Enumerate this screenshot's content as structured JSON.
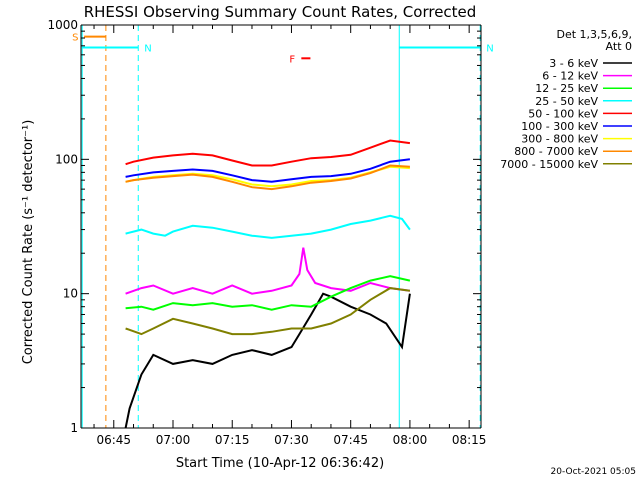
{
  "chart_data": {
    "type": "line",
    "title": "RHESSI Observing Summary Count Rates, Corrected",
    "xlabel": "Start Time (10-Apr-12 06:36:42)",
    "ylabel": "Corrected Count Rate (s⁻¹ detector⁻¹)",
    "yscale": "log",
    "ylim": [
      1,
      1000
    ],
    "xlim_minutes": [
      396.7,
      498.0
    ],
    "x_ticks": [
      {
        "label": "06:45",
        "minute": 405
      },
      {
        "label": "07:00",
        "minute": 420
      },
      {
        "label": "07:15",
        "minute": 435
      },
      {
        "label": "07:30",
        "minute": 450
      },
      {
        "label": "07:45",
        "minute": 465
      },
      {
        "label": "08:00",
        "minute": 480
      },
      {
        "label": "08:15",
        "minute": 495
      }
    ],
    "y_ticks": [
      {
        "label": "1",
        "value": 1
      },
      {
        "label": "10",
        "value": 10
      },
      {
        "label": "100",
        "value": 100
      },
      {
        "label": "1000",
        "value": 1000
      }
    ],
    "legend_title": [
      "Det 1,3,5,6,9,",
      "Att 0"
    ],
    "legend_position": "right",
    "grid": false,
    "footer_date": "20-Oct-2021 05:05",
    "series": [
      {
        "name": "3 - 6 keV",
        "color": "#000000",
        "x": [
          408,
          409,
          412,
          415,
          420,
          425,
          430,
          435,
          440,
          445,
          450,
          452,
          455,
          458,
          460,
          465,
          470,
          474,
          478,
          480
        ],
        "y": [
          1.0,
          1.4,
          2.5,
          3.5,
          3.0,
          3.2,
          3.0,
          3.5,
          3.8,
          3.5,
          4.0,
          5.0,
          7.0,
          10.0,
          9.5,
          8.0,
          7.0,
          6.0,
          4.0,
          10.0
        ]
      },
      {
        "name": "6 - 12 keV",
        "color": "#ff00ff",
        "x": [
          408,
          412,
          415,
          420,
          425,
          430,
          435,
          440,
          445,
          450,
          452,
          453,
          454,
          456,
          460,
          465,
          470,
          475,
          480
        ],
        "y": [
          10.0,
          11.0,
          11.5,
          10.0,
          11.0,
          10.0,
          11.5,
          10.0,
          10.5,
          11.5,
          14.0,
          22.0,
          15.0,
          12.0,
          11.0,
          10.5,
          12.0,
          11.0,
          10.5
        ]
      },
      {
        "name": "12 - 25 keV",
        "color": "#00ff00",
        "x": [
          408,
          412,
          415,
          420,
          425,
          430,
          435,
          440,
          445,
          450,
          455,
          460,
          465,
          470,
          475,
          480
        ],
        "y": [
          7.8,
          8.0,
          7.6,
          8.5,
          8.2,
          8.5,
          8.0,
          8.2,
          7.6,
          8.2,
          8.0,
          9.5,
          11.0,
          12.5,
          13.5,
          12.5
        ]
      },
      {
        "name": "25 - 50 keV",
        "color": "#00ffff",
        "x": [
          408,
          412,
          415,
          418,
          420,
          425,
          430,
          435,
          440,
          445,
          450,
          455,
          460,
          465,
          470,
          475,
          478,
          480
        ],
        "y": [
          28,
          30,
          28,
          27,
          29,
          32,
          31,
          29,
          27,
          26,
          27,
          28,
          30,
          33,
          35,
          38,
          36,
          30
        ]
      },
      {
        "name": "50 - 100 keV",
        "color": "#ff0000",
        "x": [
          408,
          410,
          415,
          420,
          425,
          430,
          435,
          440,
          445,
          450,
          455,
          460,
          465,
          470,
          475,
          480
        ],
        "y": [
          92,
          96,
          103,
          107,
          110,
          107,
          98,
          90,
          90,
          96,
          102,
          104,
          108,
          122,
          138,
          132
        ]
      },
      {
        "name": "100 - 300 keV",
        "color": "#0000ff",
        "x": [
          408,
          410,
          415,
          420,
          425,
          430,
          435,
          440,
          445,
          450,
          455,
          460,
          465,
          470,
          475,
          480
        ],
        "y": [
          74,
          76,
          80,
          82,
          84,
          82,
          76,
          70,
          68,
          71,
          74,
          75,
          78,
          85,
          96,
          100
        ]
      },
      {
        "name": "300 - 800 keV",
        "color": "#ffff00",
        "x": [
          408,
          410,
          415,
          420,
          425,
          430,
          435,
          440,
          445,
          450,
          455,
          460,
          465,
          470,
          475,
          480
        ],
        "y": [
          68,
          70,
          74,
          76,
          78,
          76,
          71,
          65,
          63,
          65,
          69,
          70,
          73,
          80,
          88,
          86
        ]
      },
      {
        "name": "800 - 7000 keV",
        "color": "#ff8800",
        "x": [
          408,
          410,
          415,
          420,
          425,
          430,
          435,
          440,
          445,
          450,
          455,
          460,
          465,
          470,
          475,
          480
        ],
        "y": [
          68,
          70,
          73,
          75,
          77,
          74,
          68,
          62,
          60,
          63,
          67,
          69,
          72,
          79,
          90,
          88
        ]
      },
      {
        "name": "7000 - 15000 keV",
        "color": "#808000",
        "x": [
          408,
          412,
          415,
          420,
          425,
          430,
          435,
          440,
          445,
          450,
          455,
          460,
          465,
          470,
          475,
          480
        ],
        "y": [
          5.5,
          5.0,
          5.5,
          6.5,
          6.0,
          5.5,
          5.0,
          5.0,
          5.2,
          5.5,
          5.5,
          6.0,
          7.0,
          9.0,
          11.0,
          10.5
        ]
      }
    ],
    "markers": [
      {
        "label": "S",
        "color": "#ff8800",
        "x_start": 397.5,
        "x_end": 403.0,
        "y": 820
      },
      {
        "label": "N",
        "color": "#00ffff",
        "x_start": 397.0,
        "x_end": 411.2,
        "y": 680
      },
      {
        "label": "N",
        "color": "#00ffff",
        "x_start": 477.3,
        "x_end": 497.8,
        "y": 680
      },
      {
        "label": "F",
        "color": "#ff0000",
        "x_start": 452.5,
        "x_end": 454.8,
        "y": 565
      }
    ],
    "vertical_lines": [
      {
        "color": "#ff8800",
        "style": "dashed",
        "x": 403.0
      },
      {
        "color": "#00ffff",
        "style": "dashed",
        "x": 411.2
      },
      {
        "color": "#00ffff",
        "style": "solid",
        "x": 397.0
      },
      {
        "color": "#00ffff",
        "style": "solid",
        "x": 477.3
      },
      {
        "color": "#00ffff",
        "style": "dashed",
        "x": 497.8
      }
    ]
  }
}
